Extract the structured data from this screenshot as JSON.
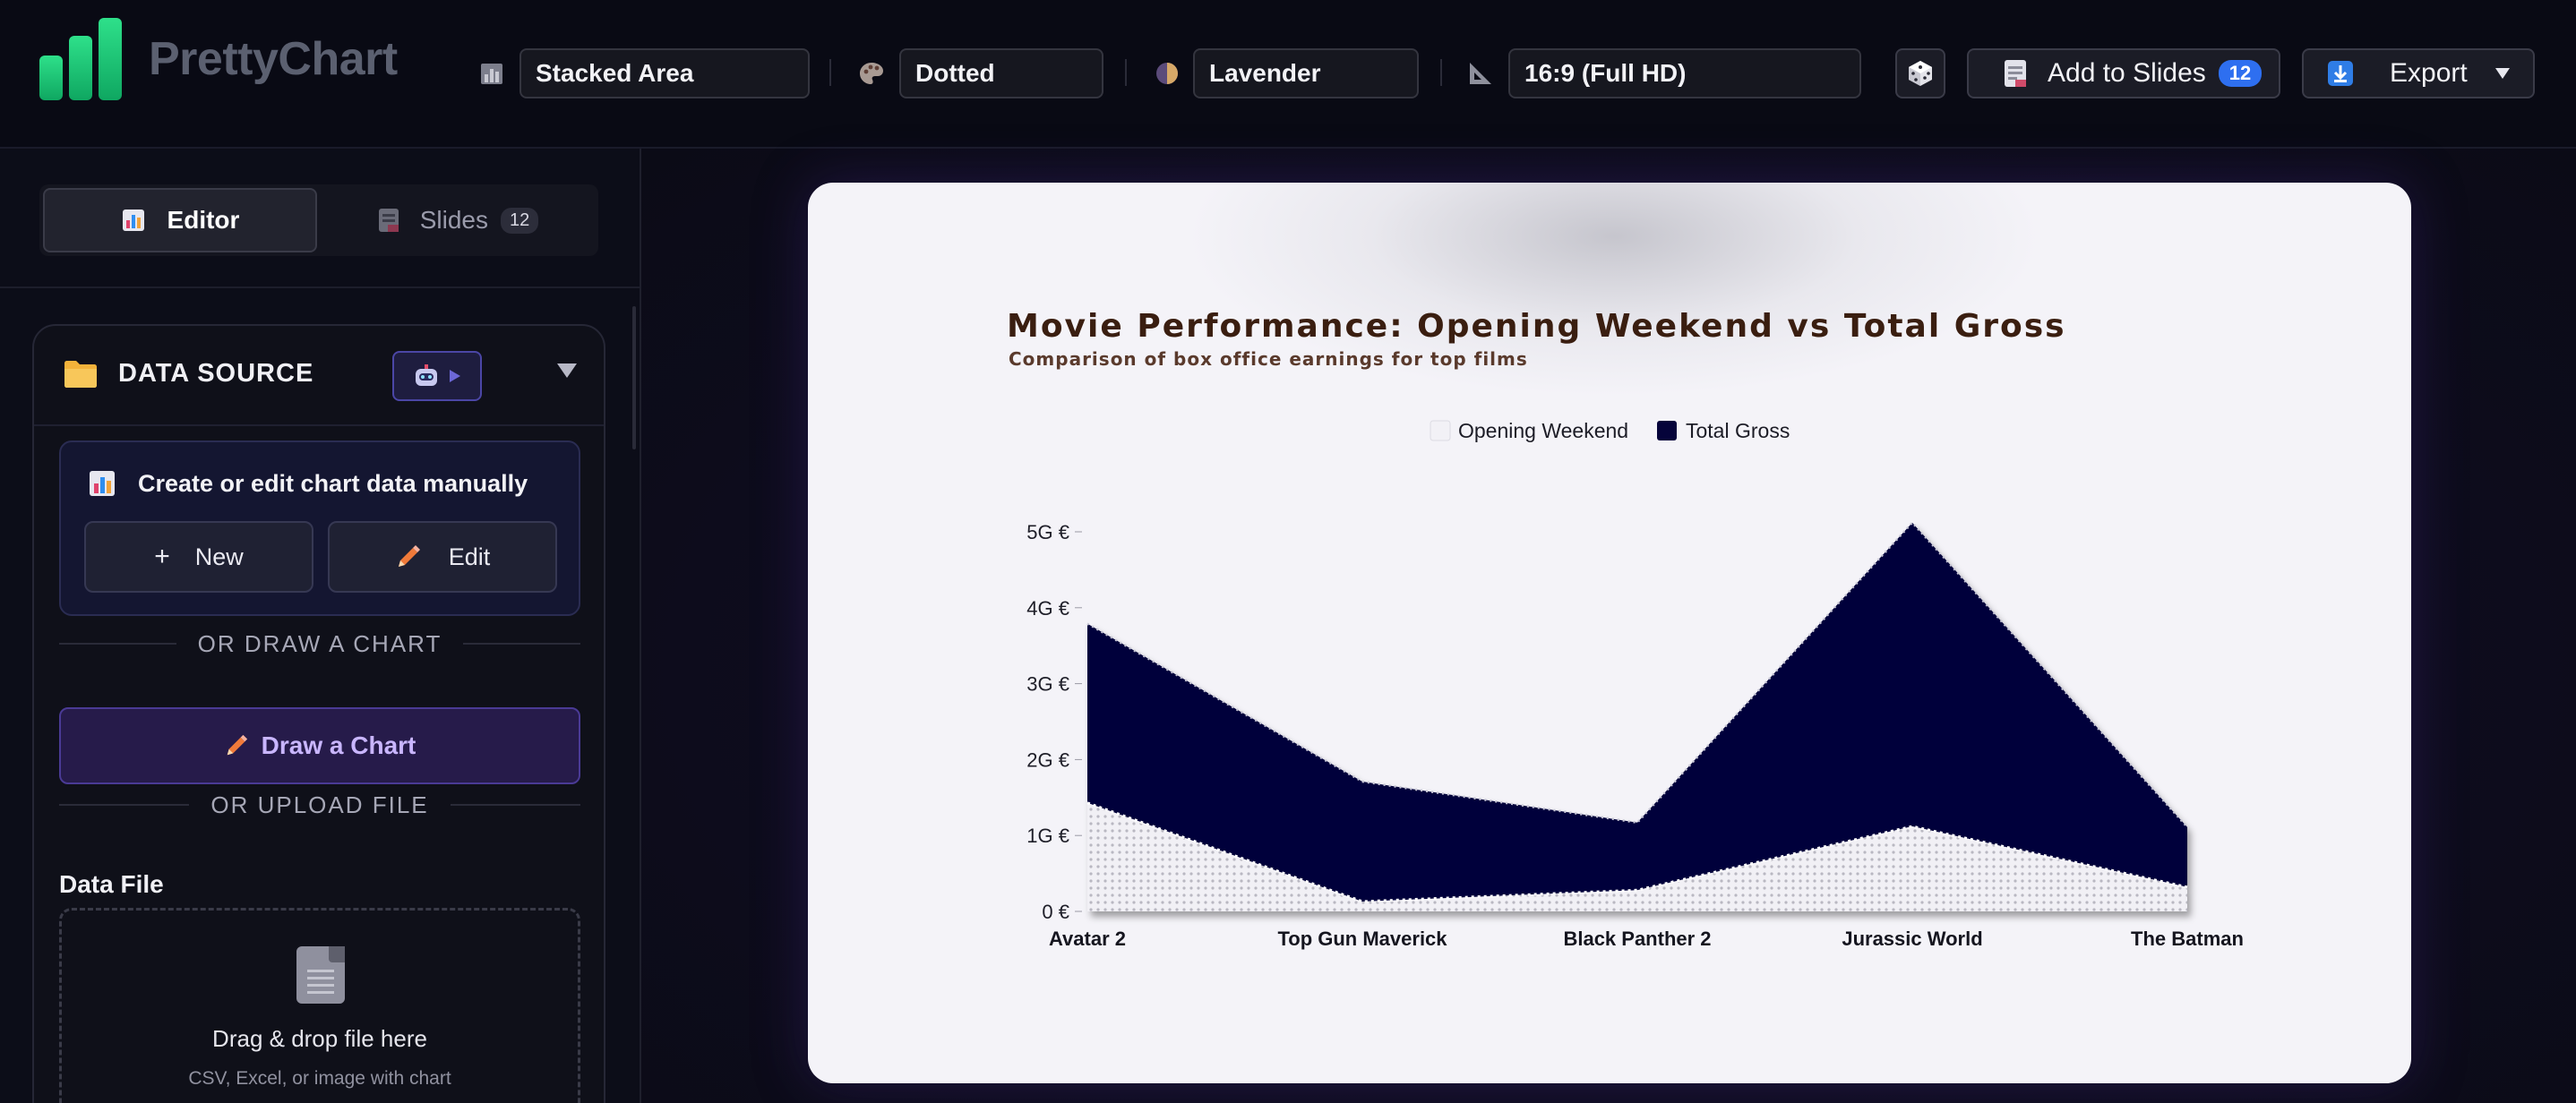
{
  "app": {
    "name": "PrettyChart"
  },
  "toolbar": {
    "chart_type": "Stacked Area",
    "style": "Dotted",
    "theme": "Lavender",
    "aspect": "16:9 (Full HD)",
    "add_to_slides_label": "Add to Slides",
    "slides_count": "12",
    "export_label": "Export"
  },
  "sidebar": {
    "tabs": [
      {
        "label": "Editor"
      },
      {
        "label": "Slides",
        "count": "12"
      }
    ],
    "data_source": {
      "title": "DATA SOURCE",
      "manual_title": "Create or edit chart data manually",
      "new_label": "New",
      "edit_label": "Edit",
      "or_draw": "OR DRAW A CHART",
      "draw_label": "Draw a Chart",
      "or_upload": "OR UPLOAD FILE",
      "data_file_label": "Data File",
      "drop_title": "Drag & drop file here",
      "drop_sub": "CSV, Excel, or image with chart"
    }
  },
  "colors": {
    "accent_green": "#1fc979",
    "total_gross": "#05033a",
    "opening_weekend": "#f2f1f6",
    "title_color": "#3a1e10",
    "badge_blue": "#2e6ff0"
  },
  "chart_data": {
    "type": "area",
    "stacked": true,
    "title": "Movie Performance: Opening Weekend vs Total Gross",
    "subtitle": "Comparison of box office earnings for top films",
    "categories": [
      "Avatar 2",
      "Top Gun Maverick",
      "Black Panther 2",
      "Jurassic World",
      "The Batman"
    ],
    "series": [
      {
        "name": "Opening Weekend",
        "values": [
          1.43,
          0.13,
          0.28,
          1.12,
          0.32
        ]
      },
      {
        "name": "Total Gross",
        "values": [
          2.36,
          1.58,
          0.89,
          4.0,
          0.79
        ]
      }
    ],
    "y_ticks": [
      "0 €",
      "1G €",
      "2G €",
      "3G €",
      "4G €",
      "5G €"
    ],
    "ylim": [
      0,
      5
    ],
    "legend_position": "top-center",
    "grid": false
  }
}
